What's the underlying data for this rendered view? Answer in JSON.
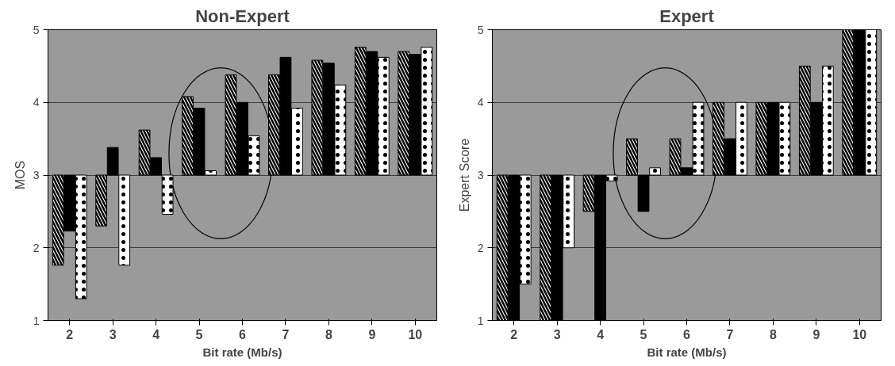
{
  "chart_data": [
    {
      "type": "bar",
      "title": "Non-Expert",
      "xlabel": "Bit rate (Mb/s)",
      "ylabel": "MOS",
      "categories": [
        "2",
        "3",
        "4",
        "5",
        "6",
        "7",
        "8",
        "9",
        "10"
      ],
      "ylim": [
        1,
        5
      ],
      "yticks": [
        1,
        2,
        3,
        4,
        5
      ],
      "grid": "y",
      "series": [
        {
          "color": "#ffffff",
          "base": [
            3,
            3,
            3,
            3,
            3,
            3,
            3,
            3,
            3
          ],
          "values": [
            -1.24,
            -0.7,
            0.62,
            1.08,
            1.38,
            1.38,
            1.58,
            1.76,
            1.7
          ]
        },
        {
          "color": "#000000",
          "base": [
            3,
            3,
            3,
            3,
            3,
            3,
            3,
            3,
            3
          ],
          "values": [
            -0.77,
            0.38,
            0.24,
            0.92,
            1.0,
            1.62,
            1.54,
            1.7,
            1.66
          ]
        },
        {
          "color": "#ffffff",
          "base": [
            3,
            3,
            3,
            3,
            3,
            3,
            3,
            3,
            3
          ],
          "values": [
            -1.7,
            -1.24,
            -0.54,
            0.06,
            0.54,
            0.92,
            1.24,
            1.62,
            1.76
          ]
        }
      ]
    },
    {
      "type": "bar",
      "title": "Expert",
      "xlabel": "Bit rate (Mb/s)",
      "ylabel": "Expert Score",
      "categories": [
        "2",
        "3",
        "4",
        "5",
        "6",
        "7",
        "8",
        "9",
        "10"
      ],
      "ylim": [
        1,
        5
      ],
      "yticks": [
        1,
        2,
        3,
        4,
        5
      ],
      "grid": "y",
      "series": [
        {
          "color": "#ffffff",
          "base": [
            3,
            3,
            3,
            3,
            3,
            3,
            3,
            3,
            3
          ],
          "values": [
            -2,
            -2,
            -0.5,
            0.5,
            0.5,
            1,
            1,
            1.5,
            2
          ]
        },
        {
          "color": "#000000",
          "base": [
            3,
            3,
            3,
            3,
            3,
            3,
            3,
            3,
            3
          ],
          "values": [
            -2,
            -2,
            -2,
            -0.5,
            0.1,
            0.5,
            1,
            1,
            2
          ]
        },
        {
          "color": "#ffffff",
          "base": [
            3,
            3,
            3,
            3,
            3,
            3,
            3,
            3,
            3
          ],
          "values": [
            -1.5,
            -1,
            -0.08,
            0.1,
            1,
            1,
            1,
            1.5,
            2
          ]
        }
      ]
    }
  ]
}
